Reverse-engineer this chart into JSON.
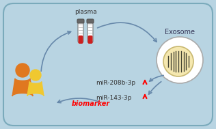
{
  "bg_color": "#b8d4e2",
  "border_color": "#7aaabb",
  "plasma_label": "plasma",
  "exosome_label": "Exosome",
  "mir1_label": "miR-208b-3p",
  "mir2_label": "miR-143-3p",
  "biomarker_label": "biomarker",
  "figure_width": 3.16,
  "figure_height": 1.89,
  "dpi": 100,
  "arrow_color": "#6688aa",
  "person_orange": "#e07820",
  "person_yellow": "#f0c830",
  "exosome_outer": "#e8e8e8",
  "exosome_inner": "#f5e8b0",
  "exosome_ring": "#c8b870",
  "tube_body": "#f0f0f0",
  "tube_cap": "#888888",
  "tube_red": "#cc2020",
  "tube_stripe": "#999999"
}
